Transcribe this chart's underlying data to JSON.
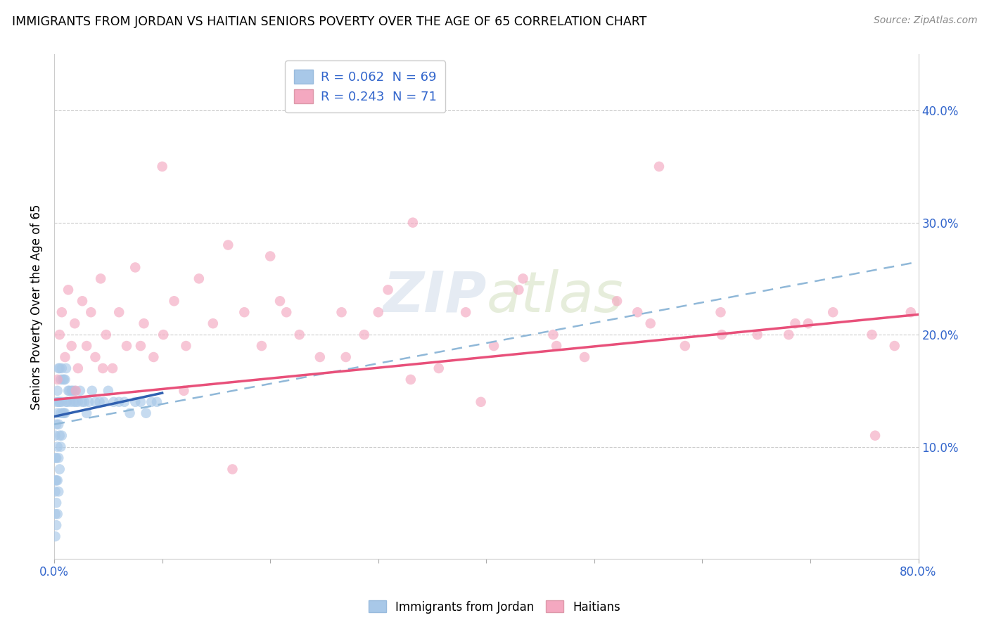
{
  "title": "IMMIGRANTS FROM JORDAN VS HAITIAN SENIORS POVERTY OVER THE AGE OF 65 CORRELATION CHART",
  "source": "Source: ZipAtlas.com",
  "ylabel": "Seniors Poverty Over the Age of 65",
  "xlim": [
    0.0,
    0.8
  ],
  "ylim": [
    0.0,
    0.45
  ],
  "xtick_vals": [
    0.0,
    0.1,
    0.2,
    0.3,
    0.4,
    0.5,
    0.6,
    0.7,
    0.8
  ],
  "xticklabels": [
    "0.0%",
    "",
    "",
    "",
    "",
    "",
    "",
    "",
    "80.0%"
  ],
  "ytick_vals": [
    0.0,
    0.1,
    0.2,
    0.3,
    0.4
  ],
  "yticklabels_right": [
    "",
    "10.0%",
    "20.0%",
    "30.0%",
    "40.0%"
  ],
  "legend_label_jordan": "R = 0.062  N = 69",
  "legend_label_haitian": "R = 0.243  N = 71",
  "jordan_color": "#a8c8e8",
  "haitian_color": "#f4a8c0",
  "jordan_line_color": "#3060b0",
  "haitian_line_color": "#e8507a",
  "jordan_dash_color": "#90b8d8",
  "watermark": "ZIPatlas",
  "jordan_points_x": [
    0.001,
    0.001,
    0.001,
    0.001,
    0.001,
    0.001,
    0.002,
    0.002,
    0.002,
    0.002,
    0.002,
    0.002,
    0.003,
    0.003,
    0.003,
    0.003,
    0.003,
    0.004,
    0.004,
    0.004,
    0.004,
    0.004,
    0.005,
    0.005,
    0.005,
    0.005,
    0.006,
    0.006,
    0.006,
    0.007,
    0.007,
    0.007,
    0.008,
    0.008,
    0.009,
    0.009,
    0.01,
    0.01,
    0.011,
    0.011,
    0.012,
    0.013,
    0.014,
    0.015,
    0.016,
    0.017,
    0.018,
    0.019,
    0.02,
    0.022,
    0.024,
    0.026,
    0.028,
    0.03,
    0.032,
    0.035,
    0.038,
    0.042,
    0.046,
    0.05,
    0.055,
    0.06,
    0.065,
    0.07,
    0.075,
    0.08,
    0.085,
    0.09,
    0.095
  ],
  "jordan_points_y": [
    0.02,
    0.04,
    0.06,
    0.07,
    0.09,
    0.11,
    0.03,
    0.05,
    0.07,
    0.09,
    0.12,
    0.14,
    0.04,
    0.07,
    0.1,
    0.13,
    0.15,
    0.06,
    0.09,
    0.12,
    0.14,
    0.17,
    0.08,
    0.11,
    0.14,
    0.17,
    0.1,
    0.13,
    0.16,
    0.11,
    0.14,
    0.17,
    0.13,
    0.16,
    0.13,
    0.16,
    0.13,
    0.16,
    0.14,
    0.17,
    0.14,
    0.15,
    0.15,
    0.14,
    0.15,
    0.15,
    0.14,
    0.15,
    0.14,
    0.14,
    0.15,
    0.14,
    0.14,
    0.13,
    0.14,
    0.15,
    0.14,
    0.14,
    0.14,
    0.15,
    0.14,
    0.14,
    0.14,
    0.13,
    0.14,
    0.14,
    0.13,
    0.14,
    0.14
  ],
  "haitian_points_x": [
    0.003,
    0.005,
    0.007,
    0.01,
    0.013,
    0.016,
    0.019,
    0.022,
    0.026,
    0.03,
    0.034,
    0.038,
    0.043,
    0.048,
    0.054,
    0.06,
    0.067,
    0.075,
    0.083,
    0.092,
    0.101,
    0.111,
    0.122,
    0.134,
    0.147,
    0.161,
    0.176,
    0.192,
    0.209,
    0.227,
    0.246,
    0.266,
    0.287,
    0.309,
    0.332,
    0.356,
    0.381,
    0.407,
    0.434,
    0.462,
    0.491,
    0.521,
    0.552,
    0.584,
    0.617,
    0.651,
    0.686,
    0.721,
    0.757,
    0.793,
    0.02,
    0.045,
    0.08,
    0.12,
    0.165,
    0.215,
    0.27,
    0.33,
    0.395,
    0.465,
    0.54,
    0.618,
    0.698,
    0.778,
    0.1,
    0.2,
    0.3,
    0.43,
    0.56,
    0.68,
    0.76
  ],
  "haitian_points_y": [
    0.16,
    0.2,
    0.22,
    0.18,
    0.24,
    0.19,
    0.21,
    0.17,
    0.23,
    0.19,
    0.22,
    0.18,
    0.25,
    0.2,
    0.17,
    0.22,
    0.19,
    0.26,
    0.21,
    0.18,
    0.2,
    0.23,
    0.19,
    0.25,
    0.21,
    0.28,
    0.22,
    0.19,
    0.23,
    0.2,
    0.18,
    0.22,
    0.2,
    0.24,
    0.3,
    0.17,
    0.22,
    0.19,
    0.25,
    0.2,
    0.18,
    0.23,
    0.21,
    0.19,
    0.22,
    0.2,
    0.21,
    0.22,
    0.2,
    0.22,
    0.15,
    0.17,
    0.19,
    0.15,
    0.08,
    0.22,
    0.18,
    0.16,
    0.14,
    0.19,
    0.22,
    0.2,
    0.21,
    0.19,
    0.35,
    0.27,
    0.22,
    0.24,
    0.35,
    0.2,
    0.11
  ],
  "jordan_trendline_x": [
    0.0,
    0.1
  ],
  "jordan_trendline_y": [
    0.127,
    0.148
  ],
  "haitian_trendline_x": [
    0.0,
    0.8
  ],
  "haitian_trendline_y": [
    0.142,
    0.218
  ],
  "jordan_dashtrendline_x": [
    0.0,
    0.8
  ],
  "jordan_dashtrendline_y": [
    0.12,
    0.265
  ]
}
